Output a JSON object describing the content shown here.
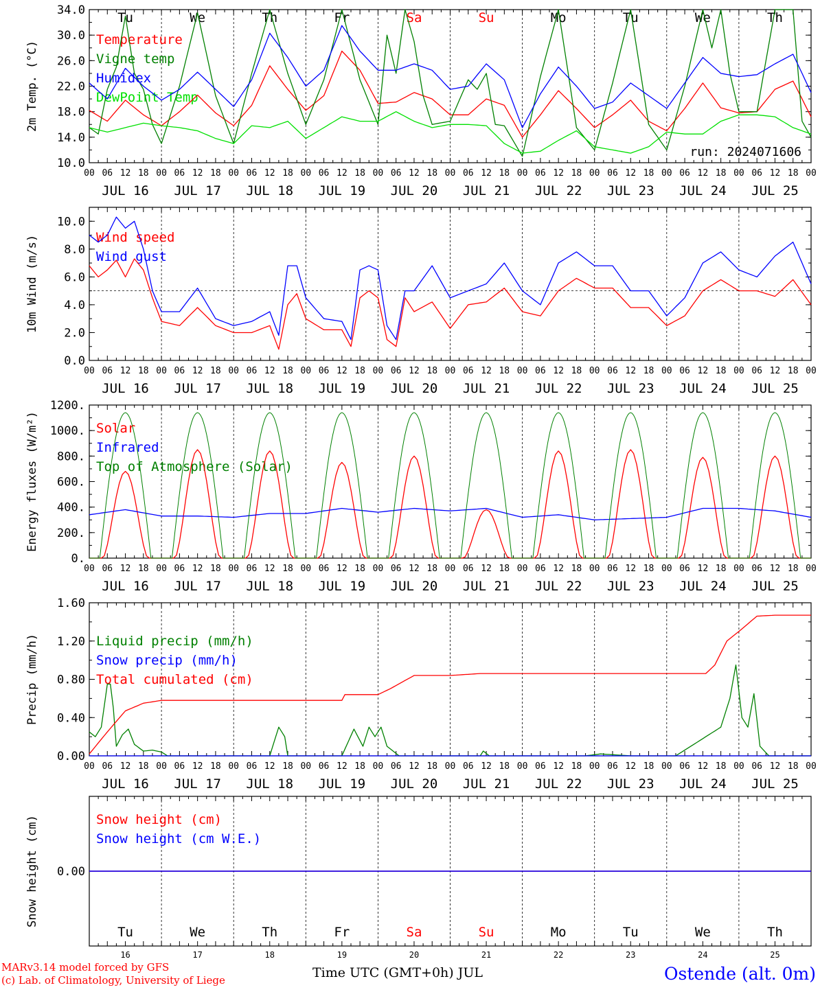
{
  "chart_data": [
    {
      "type": "line",
      "panel_id": "temperature",
      "ylabel": "2m Temp. (°C)",
      "ylim": [
        10,
        34
      ],
      "yticks": [
        10.0,
        14.0,
        18.0,
        22.0,
        26.0,
        30.0,
        34.0
      ],
      "ytick_labels": [
        "10.0",
        "14.0",
        "18.0",
        "22.0",
        "26.0",
        "30.0",
        "34.0"
      ],
      "x_unit": "hours since JUL 16 00 UTC",
      "xlim": [
        0,
        240
      ],
      "run_label": "run: 2024071606",
      "weekdays": [
        {
          "label": "Tu",
          "color": "#000000"
        },
        {
          "label": "We",
          "color": "#000000"
        },
        {
          "label": "Th",
          "color": "#000000"
        },
        {
          "label": "Fr",
          "color": "#000000"
        },
        {
          "label": "Sa",
          "color": "#ff0000"
        },
        {
          "label": "Su",
          "color": "#ff0000"
        },
        {
          "label": "Mo",
          "color": "#000000"
        },
        {
          "label": "Tu",
          "color": "#000000"
        },
        {
          "label": "We",
          "color": "#000000"
        },
        {
          "label": "Th",
          "color": "#000000"
        }
      ],
      "series": [
        {
          "name": "Temperature",
          "color": "#ff0000",
          "x": [
            0,
            6,
            12,
            18,
            24,
            30,
            36,
            42,
            48,
            54,
            60,
            66,
            72,
            78,
            84,
            90,
            96,
            102,
            108,
            114,
            120,
            126,
            132,
            138,
            144,
            150,
            156,
            162,
            168,
            174,
            180,
            186,
            192,
            198,
            204,
            210,
            216,
            222,
            228,
            234,
            240
          ],
          "y": [
            18.2,
            16.5,
            19.8,
            17.5,
            15.8,
            18,
            20.6,
            17.8,
            15.8,
            19,
            25.2,
            21.5,
            18.2,
            20.5,
            27.5,
            24.5,
            19.3,
            19.5,
            21,
            20,
            17.5,
            17.5,
            20,
            19,
            14,
            17.5,
            21.3,
            18.5,
            15.5,
            17.5,
            19.8,
            16.5,
            15,
            18.5,
            22.5,
            18.6,
            17.8,
            18,
            21.5,
            22.8,
            17.2
          ]
        },
        {
          "name": "Vigne temp",
          "color": "#008000",
          "x": [
            0,
            3,
            6,
            9,
            12,
            15,
            18,
            21,
            24,
            30,
            36,
            42,
            48,
            54,
            60,
            66,
            72,
            78,
            84,
            90,
            96,
            99,
            102,
            105,
            108,
            111,
            114,
            120,
            126,
            129,
            132,
            135,
            138,
            144,
            150,
            156,
            162,
            168,
            174,
            180,
            186,
            192,
            198,
            204,
            207,
            210,
            213,
            216,
            222,
            228,
            234,
            237,
            240
          ],
          "y": [
            15.5,
            14.5,
            21.5,
            25,
            33,
            24,
            21.5,
            16,
            13,
            22,
            33.5,
            20.5,
            13,
            24,
            34,
            24,
            16,
            23,
            34,
            23,
            16,
            30,
            24,
            34,
            29,
            20.5,
            16,
            16.5,
            23,
            21.5,
            24,
            16,
            15.8,
            11,
            23.5,
            34,
            15.5,
            12,
            22.5,
            34,
            16,
            12,
            22,
            34,
            28,
            34,
            24,
            18,
            18,
            34,
            34,
            16.5,
            14
          ]
        },
        {
          "name": "Humidex",
          "color": "#0000ff",
          "x": [
            0,
            6,
            12,
            18,
            24,
            30,
            36,
            42,
            48,
            54,
            60,
            66,
            72,
            78,
            84,
            90,
            96,
            102,
            108,
            114,
            120,
            126,
            132,
            138,
            144,
            150,
            156,
            162,
            168,
            174,
            180,
            186,
            192,
            198,
            204,
            210,
            216,
            222,
            228,
            234,
            240
          ],
          "y": [
            22.5,
            20,
            24.8,
            22,
            19.8,
            21.5,
            24.2,
            21.5,
            18.8,
            23,
            30.3,
            26.5,
            22,
            24.5,
            31.5,
            27.5,
            24.5,
            24.5,
            25.5,
            24.5,
            21.5,
            22,
            25.5,
            23,
            15.5,
            20.8,
            25,
            22,
            18.5,
            19.5,
            22.5,
            20.5,
            18.5,
            22.5,
            26.5,
            24,
            23.5,
            23.8,
            25.5,
            27,
            21
          ]
        },
        {
          "name": "DewPoint Temp",
          "color": "#00e000",
          "x": [
            0,
            6,
            12,
            18,
            24,
            30,
            36,
            42,
            48,
            54,
            60,
            66,
            72,
            78,
            84,
            90,
            96,
            102,
            108,
            114,
            120,
            126,
            132,
            138,
            144,
            150,
            156,
            162,
            168,
            174,
            180,
            186,
            192,
            198,
            204,
            210,
            216,
            222,
            228,
            234,
            240
          ],
          "y": [
            15.5,
            14.8,
            15.5,
            16.2,
            15.8,
            15.5,
            15,
            13.8,
            13,
            15.8,
            15.5,
            16.5,
            13.8,
            15.5,
            17.2,
            16.5,
            16.5,
            18,
            16.5,
            15.5,
            16,
            16,
            15.8,
            13,
            11.5,
            11.8,
            13.5,
            15,
            12.5,
            12,
            11.5,
            12.5,
            14.8,
            14.5,
            14.5,
            16.5,
            17.5,
            17.5,
            17.2,
            15.5,
            14.5
          ]
        }
      ]
    },
    {
      "type": "line",
      "panel_id": "wind",
      "ylabel": "10m Wind (m/s)",
      "ylim": [
        0,
        11
      ],
      "yticks": [
        0.0,
        2.0,
        4.0,
        6.0,
        8.0,
        10.0
      ],
      "ytick_labels": [
        "0.0",
        "2.0",
        "4.0",
        "6.0",
        "8.0",
        "10.0"
      ],
      "reference_line": 5.0,
      "x_unit": "hours since JUL 16 00 UTC",
      "xlim": [
        0,
        240
      ],
      "series": [
        {
          "name": "Wind speed",
          "color": "#ff0000",
          "x": [
            0,
            3,
            6,
            9,
            12,
            15,
            18,
            21,
            24,
            30,
            36,
            42,
            48,
            54,
            60,
            63,
            66,
            69,
            72,
            78,
            84,
            87,
            90,
            93,
            96,
            99,
            102,
            105,
            108,
            114,
            120,
            126,
            132,
            138,
            144,
            150,
            156,
            162,
            168,
            174,
            180,
            186,
            192,
            198,
            204,
            210,
            216,
            222,
            228,
            234,
            240
          ],
          "y": [
            6.8,
            6,
            6.5,
            7.2,
            6,
            7.3,
            6.5,
            4.5,
            2.8,
            2.5,
            3.8,
            2.5,
            2,
            2,
            2.5,
            0.8,
            4,
            4.8,
            3,
            2.2,
            2.2,
            1,
            4.5,
            5,
            4.5,
            1.5,
            1,
            4.5,
            3.5,
            4.2,
            2.3,
            4,
            4.2,
            5.2,
            3.5,
            3.2,
            5,
            5.9,
            5.2,
            5.2,
            3.8,
            3.8,
            2.5,
            3.2,
            5,
            5.8,
            5,
            5,
            4.6,
            5.8,
            4
          ]
        },
        {
          "name": "Wind gust",
          "color": "#0000ff",
          "x": [
            0,
            3,
            6,
            9,
            12,
            15,
            18,
            21,
            24,
            30,
            36,
            42,
            48,
            54,
            60,
            63,
            66,
            69,
            72,
            78,
            84,
            87,
            90,
            93,
            96,
            99,
            102,
            105,
            108,
            114,
            120,
            126,
            132,
            138,
            144,
            150,
            156,
            162,
            168,
            174,
            180,
            186,
            192,
            198,
            204,
            210,
            216,
            222,
            228,
            234,
            240
          ],
          "y": [
            9,
            8.5,
            9,
            10.3,
            9.5,
            10,
            8,
            5,
            3.5,
            3.5,
            5.2,
            3,
            2.5,
            2.8,
            3.5,
            1.8,
            6.8,
            6.8,
            4.5,
            3,
            2.8,
            1.5,
            6.5,
            6.8,
            6.5,
            2.5,
            1.5,
            5,
            5,
            6.8,
            4.5,
            5,
            5.5,
            7,
            5,
            4,
            7,
            7.8,
            6.8,
            6.8,
            5,
            5,
            3.2,
            4.5,
            7,
            7.8,
            6.5,
            6,
            7.5,
            8.5,
            5.5
          ]
        }
      ]
    },
    {
      "type": "line",
      "panel_id": "energy",
      "ylabel": "Energy fluxes (W/m²)",
      "ylim": [
        0,
        1200
      ],
      "yticks": [
        0,
        200,
        400,
        600,
        800,
        1000,
        1200
      ],
      "ytick_labels": [
        "0.",
        "200.",
        "400.",
        "600.",
        "800.",
        "1000.",
        "1200."
      ],
      "x_unit": "hours since JUL 16 00 UTC",
      "xlim": [
        0,
        240
      ],
      "series": [
        {
          "name": "Solar",
          "color": "#ff0000",
          "solar_peaks": [
            680,
            850,
            840,
            750,
            800,
            380,
            840,
            850,
            790,
            800
          ]
        },
        {
          "name": "Infrared",
          "color": "#0000ff",
          "x": [
            0,
            12,
            24,
            36,
            48,
            60,
            72,
            84,
            96,
            108,
            120,
            132,
            144,
            156,
            168,
            180,
            192,
            204,
            216,
            228,
            240
          ],
          "y": [
            340,
            380,
            330,
            330,
            320,
            350,
            350,
            390,
            360,
            390,
            370,
            390,
            320,
            340,
            300,
            310,
            320,
            390,
            390,
            370,
            320
          ]
        },
        {
          "name": "Top of Atmosphere (Solar)",
          "color": "#008000",
          "toa_peak": 1140
        }
      ]
    },
    {
      "type": "line",
      "panel_id": "precip",
      "ylabel": "Precip (mm/h)",
      "ylim": [
        0,
        1.6
      ],
      "yticks": [
        0.0,
        0.4,
        0.8,
        1.2,
        1.6
      ],
      "ytick_labels": [
        "0.00",
        "0.40",
        "0.80",
        "1.20",
        "1.60"
      ],
      "x_unit": "hours since JUL 16 00 UTC",
      "xlim": [
        0,
        240
      ],
      "series": [
        {
          "name": "Liquid precip (mm/h)",
          "color": "#008000",
          "x": [
            0,
            2,
            4,
            6,
            7,
            8,
            9,
            11,
            13,
            15,
            18,
            21,
            24,
            26,
            60,
            63,
            65,
            66,
            68,
            71,
            84,
            88,
            91,
            93,
            95,
            97,
            99,
            101,
            103,
            105,
            130,
            131,
            133,
            165,
            170,
            180,
            195,
            210,
            213,
            215,
            217,
            219,
            221,
            223,
            226,
            240
          ],
          "y": [
            0.25,
            0.2,
            0.3,
            0.75,
            0.75,
            0.5,
            0.1,
            0.22,
            0.28,
            0.12,
            0.05,
            0.06,
            0.04,
            0,
            0,
            0.3,
            0.2,
            0,
            0,
            0,
            0,
            0.28,
            0.1,
            0.3,
            0.2,
            0.3,
            0.1,
            0.05,
            0,
            0,
            0,
            0.05,
            0,
            0,
            0.02,
            0,
            0,
            0.3,
            0.6,
            0.95,
            0.4,
            0.3,
            0.65,
            0.1,
            0,
            0
          ]
        },
        {
          "name": "Snow precip (mm/h)",
          "color": "#0000ff",
          "x": [
            0,
            240
          ],
          "y": [
            0,
            0
          ]
        },
        {
          "name": "Total cumulated (cm)",
          "color": "#ff0000",
          "x": [
            0,
            6,
            12,
            18,
            24,
            60,
            84,
            85,
            96,
            100,
            108,
            110,
            120,
            130,
            150,
            190,
            205,
            208,
            212,
            216,
            222,
            228,
            240
          ],
          "y": [
            0.02,
            0.25,
            0.47,
            0.55,
            0.58,
            0.58,
            0.58,
            0.64,
            0.64,
            0.7,
            0.84,
            0.84,
            0.84,
            0.86,
            0.86,
            0.86,
            0.86,
            0.95,
            1.2,
            1.3,
            1.46,
            1.47,
            1.47
          ]
        }
      ]
    },
    {
      "type": "line",
      "panel_id": "snow",
      "ylabel": "Snow height (cm)",
      "ylim": [
        -1,
        1
      ],
      "yticks": [
        0.0
      ],
      "ytick_labels": [
        "0.00"
      ],
      "x_unit": "hours since JUL 16 00 UTC",
      "xlim": [
        0,
        240
      ],
      "series": [
        {
          "name": "Snow height (cm)",
          "color": "#ff0000",
          "x": [
            0,
            240
          ],
          "y": [
            0,
            0
          ]
        },
        {
          "name": "Snow height (cm W.E.)",
          "color": "#0000ff",
          "x": [
            0,
            240
          ],
          "y": [
            0,
            0
          ]
        }
      ],
      "weekdays": [
        {
          "label": "Tu",
          "color": "#000000"
        },
        {
          "label": "We",
          "color": "#000000"
        },
        {
          "label": "Th",
          "color": "#000000"
        },
        {
          "label": "Fr",
          "color": "#000000"
        },
        {
          "label": "Sa",
          "color": "#ff0000"
        },
        {
          "label": "Su",
          "color": "#ff0000"
        },
        {
          "label": "Mo",
          "color": "#000000"
        },
        {
          "label": "Tu",
          "color": "#000000"
        },
        {
          "label": "We",
          "color": "#000000"
        },
        {
          "label": "Th",
          "color": "#000000"
        }
      ],
      "day_numbers": [
        "16",
        "17",
        "18",
        "19",
        "20",
        "21",
        "22",
        "23",
        "24",
        "25"
      ]
    }
  ],
  "x_axis": {
    "hour_labels": [
      "00",
      "06",
      "12",
      "18"
    ],
    "final_hour_label": "00",
    "dates": [
      "JUL 16",
      "JUL 17",
      "JUL 18",
      "JUL 19",
      "JUL 20",
      "JUL 21",
      "JUL 22",
      "JUL 23",
      "JUL 24",
      "JUL 25"
    ],
    "title": "Time UTC (GMT+0h) JUL"
  },
  "footer": {
    "model_line": "MARv3.14 model forced by GFS",
    "lab_line": "(c) Lab. of Climatology, University of Liege",
    "station": "Ostende (alt. 0m)"
  },
  "colors": {
    "red": "#ff0000",
    "green": "#008000",
    "blue": "#0000ff",
    "lightgreen": "#00e000"
  }
}
